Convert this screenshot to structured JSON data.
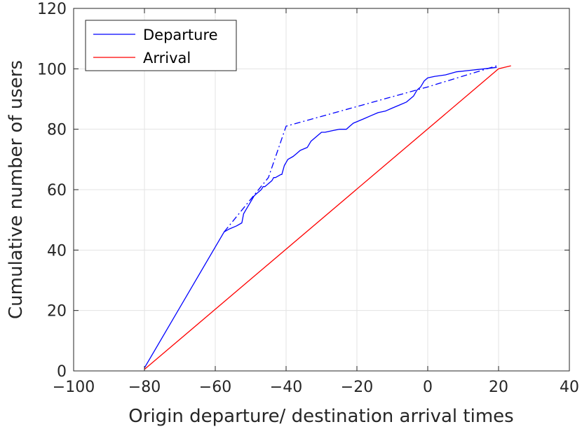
{
  "chart_data": {
    "type": "line",
    "title": "",
    "xlabel": "Origin departure/ destination arrival times",
    "ylabel": "Cumulative number of users",
    "xlim": [
      -100,
      40
    ],
    "ylim": [
      0,
      120
    ],
    "xticks": [
      -100,
      -80,
      -60,
      -40,
      -20,
      0,
      20,
      40
    ],
    "yticks": [
      0,
      20,
      40,
      60,
      80,
      100,
      120
    ],
    "xtick_labels": [
      "−100",
      "−80",
      "−60",
      "−40",
      "−20",
      "0",
      "20",
      "40"
    ],
    "ytick_labels": [
      "0",
      "20",
      "40",
      "60",
      "80",
      "100",
      "120"
    ],
    "grid": true,
    "legend_position": "top-left",
    "series": [
      {
        "name": "Departure",
        "color": "#0000ff",
        "style": "solid",
        "x": [
          -80,
          -57.5,
          -56,
          -54,
          -52.5,
          -52,
          -51.5,
          -51,
          -50.5,
          -50,
          -49.5,
          -49,
          -48,
          -47,
          -46.5,
          -46,
          -45,
          -44,
          -43.5,
          -43,
          -41.5,
          -41.2,
          -40.5,
          -40,
          -39.5,
          -38,
          -37,
          -36,
          -34,
          -33,
          -32,
          -31,
          -30,
          -29,
          -27,
          -25,
          -23,
          -22,
          -21,
          -20,
          -18,
          -16,
          -14,
          -12,
          -10,
          -8,
          -6,
          -4,
          -3,
          -2,
          -1,
          0,
          2,
          5,
          8,
          12,
          16,
          19.5
        ],
        "y": [
          1,
          46,
          47,
          48,
          49,
          52,
          53,
          54,
          55,
          56,
          57,
          58,
          59,
          60,
          61,
          61,
          62,
          63,
          64,
          64,
          65,
          65,
          68,
          69,
          70,
          71,
          72,
          73,
          74,
          76,
          77,
          78,
          79,
          79,
          79.5,
          80,
          80,
          81,
          82,
          82.5,
          83.5,
          84.5,
          85.5,
          86,
          87,
          88,
          89,
          91,
          93,
          94,
          96,
          97,
          97.5,
          98,
          99,
          99.5,
          100,
          100.5
        ]
      },
      {
        "name": "",
        "color": "#0000ff",
        "style": "dash-dot",
        "x": [
          -57.5,
          -45,
          -40,
          0,
          19.5
        ],
        "y": [
          46,
          64,
          81,
          94,
          101
        ]
      },
      {
        "name": "Arrival",
        "color": "#ff0000",
        "style": "solid",
        "x": [
          -80,
          20,
          23.5
        ],
        "y": [
          0.5,
          100,
          101
        ]
      }
    ]
  }
}
